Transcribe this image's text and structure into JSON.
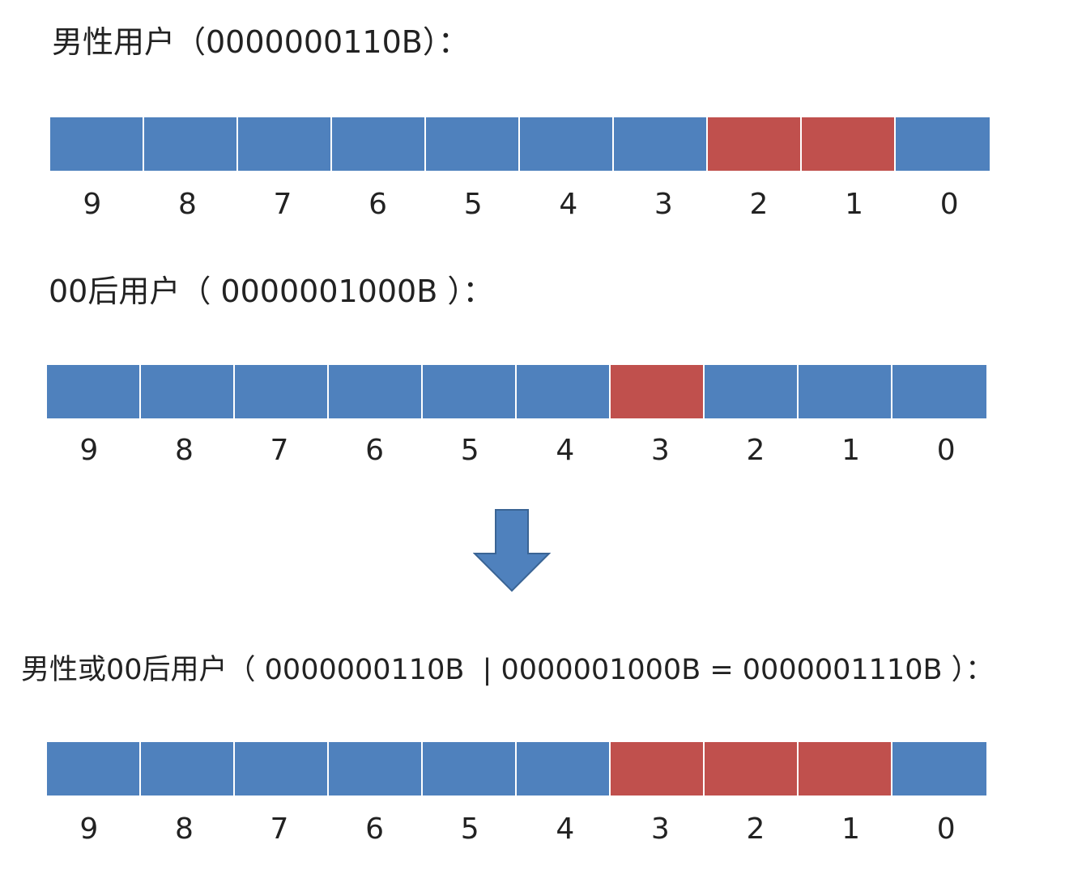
{
  "colors": {
    "off": "#4f81bd",
    "on": "#c0504d"
  },
  "sections": [
    {
      "title": "男性用户（0000000110B）：",
      "bits": [
        0,
        0,
        0,
        0,
        0,
        0,
        0,
        1,
        1,
        0
      ],
      "labels": [
        "9",
        "8",
        "7",
        "6",
        "5",
        "4",
        "3",
        "2",
        "1",
        "0"
      ]
    },
    {
      "title": "00后用户（ 0000001000B ）：",
      "bits": [
        0,
        0,
        0,
        0,
        0,
        0,
        1,
        0,
        0,
        0
      ],
      "labels": [
        "9",
        "8",
        "7",
        "6",
        "5",
        "4",
        "3",
        "2",
        "1",
        "0"
      ]
    },
    {
      "title": "男性或00后用户（ 0000000110B  | 0000001000B = 0000001110B ）：",
      "bits": [
        0,
        0,
        0,
        0,
        0,
        0,
        1,
        1,
        1,
        0
      ],
      "labels": [
        "9",
        "8",
        "7",
        "6",
        "5",
        "4",
        "3",
        "2",
        "1",
        "0"
      ]
    }
  ],
  "arrow_icon": "down-arrow-icon"
}
